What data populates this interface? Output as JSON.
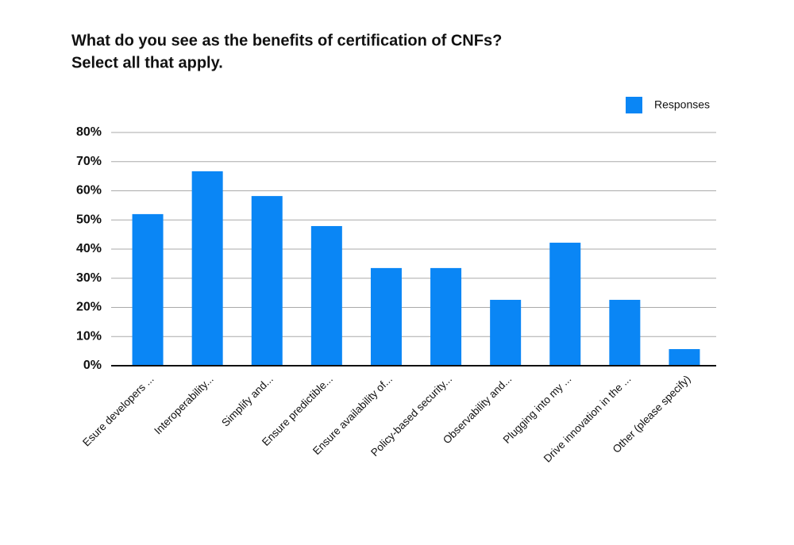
{
  "chart_data": {
    "type": "bar",
    "title": "What do you see as the benefits of certification of CNFs?",
    "subtitle": "Select all that apply.",
    "categories": [
      "Esure developers ...",
      "Interoperability...",
      "Simplify and...",
      "Ensure predictible...",
      "Ensure availability of...",
      "Policy-based security...",
      "Observability and...",
      "Plugging into my ...",
      "Drive innovation in the ...",
      "Other (please specify)"
    ],
    "series": [
      {
        "name": "Responses",
        "color": "#0a86f5",
        "values": [
          52.0,
          66.7,
          58.2,
          47.9,
          33.5,
          33.5,
          22.6,
          42.2,
          22.6,
          5.7
        ]
      }
    ],
    "ylim": [
      0,
      80
    ],
    "yticks": [
      {
        "value": 0,
        "label": "0%"
      },
      {
        "value": 10,
        "label": "10%"
      },
      {
        "value": 20,
        "label": "20%"
      },
      {
        "value": 30,
        "label": "30%"
      },
      {
        "value": 40,
        "label": "40%"
      },
      {
        "value": 50,
        "label": "50%"
      },
      {
        "value": 60,
        "label": "60%"
      },
      {
        "value": 70,
        "label": "70%"
      },
      {
        "value": 80,
        "label": "80%"
      }
    ],
    "grid": true,
    "legend": "top-right"
  }
}
